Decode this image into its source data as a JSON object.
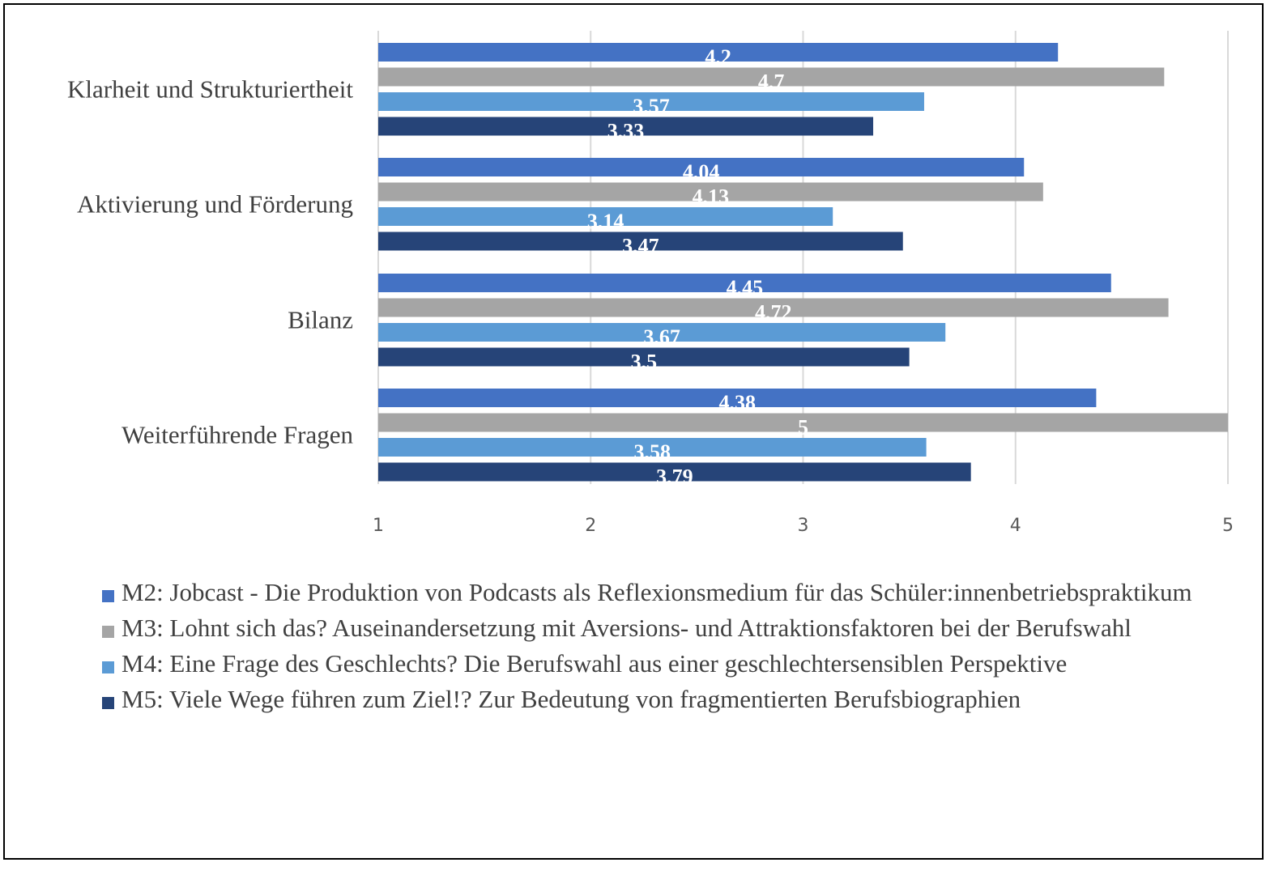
{
  "chart_data": {
    "type": "bar",
    "orientation": "horizontal",
    "categories": [
      "Klarheit und Strukturiertheit",
      "Aktivierung und Förderung",
      "Bilanz",
      "Weiterführende Fragen"
    ],
    "series": [
      {
        "name": "M2: Jobcast - Die Produktion von Podcasts als Reflexionsmedium für das Schüler:innenbetriebspraktikum",
        "color": "#4472c4",
        "values": [
          4.2,
          4.04,
          4.45,
          4.38
        ],
        "labels": [
          "4,2",
          "4,04",
          "4,45",
          "4,38"
        ]
      },
      {
        "name": "M3: Lohnt sich das? Auseinandersetzung mit Aversions- und Attraktionsfaktoren bei der Berufswahl",
        "color": "#a5a5a5",
        "values": [
          4.7,
          4.13,
          4.72,
          5
        ],
        "labels": [
          "4,7",
          "4,13",
          "4,72",
          "5"
        ]
      },
      {
        "name": "M4: Eine Frage des Geschlechts?  Die Berufswahl aus einer geschlechtersensiblen Perspektive",
        "color": "#5b9bd5",
        "values": [
          3.57,
          3.14,
          3.67,
          3.58
        ],
        "labels": [
          "3,57",
          "3,14",
          "3,67",
          "3,58"
        ]
      },
      {
        "name": "M5: Viele Wege führen zum Ziel!? Zur Bedeutung von fragmentierten Berufsbiographien",
        "color": "#264478",
        "values": [
          3.33,
          3.47,
          3.5,
          3.79
        ],
        "labels": [
          "3,33",
          "3,47",
          "3,5",
          "3,79"
        ]
      }
    ],
    "xlim": [
      1,
      5
    ],
    "xticks": [
      "1",
      "2",
      "3",
      "4",
      "5"
    ],
    "grid": true,
    "legend_position": "bottom",
    "title": "",
    "xlabel": "",
    "ylabel": ""
  }
}
